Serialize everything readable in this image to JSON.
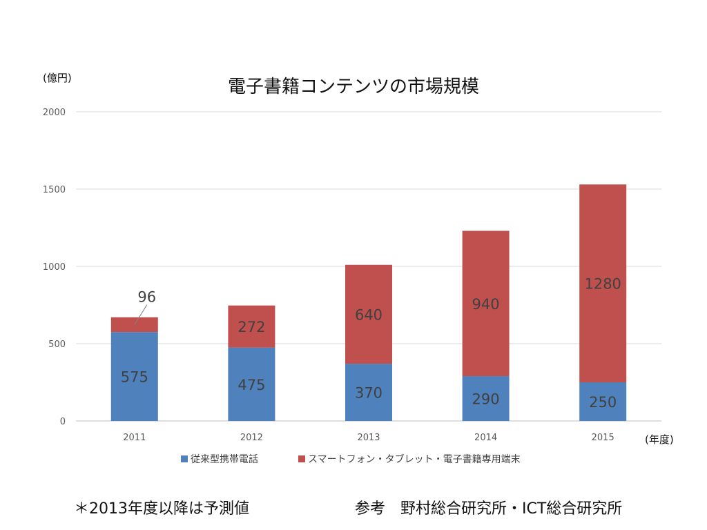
{
  "chart_data": {
    "type": "bar",
    "stacked": true,
    "title": "電子書籍コンテンツの市場規模",
    "ylabel": "(億円)",
    "xlabel": "(年度)",
    "categories": [
      "2011",
      "2012",
      "2013",
      "2014",
      "2015"
    ],
    "series": [
      {
        "name": "従来型携帯電話",
        "values": [
          575,
          475,
          370,
          290,
          250
        ],
        "color": "#4f81bd"
      },
      {
        "name": "スマートフォン・タブレット・電子書籍専用端末",
        "values": [
          96,
          272,
          640,
          940,
          1280
        ],
        "color": "#c0504d"
      }
    ],
    "ylim": [
      0,
      2000
    ],
    "yticks": [
      0,
      500,
      1000,
      1500,
      2000
    ],
    "grid": true,
    "legend_position": "bottom"
  },
  "footnotes": {
    "forecast_note": "＊2013年度以降は予測値",
    "source_note": "参考　野村総合研究所・ICT総合研究所"
  }
}
